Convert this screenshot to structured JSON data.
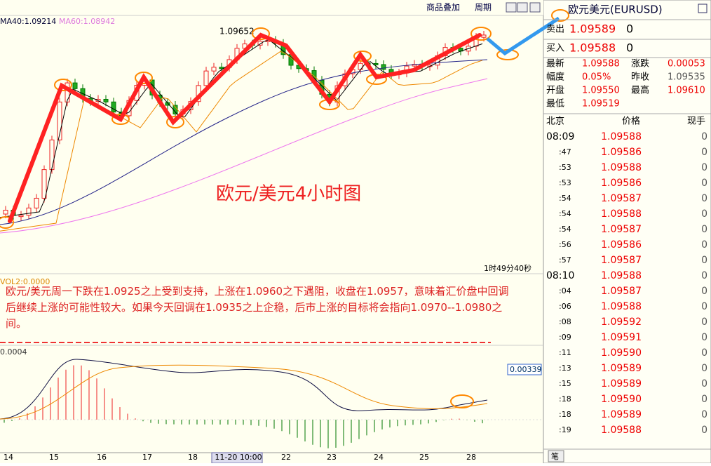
{
  "toolbar": {
    "buttons": [
      "商品叠加",
      "周期"
    ]
  },
  "chart": {
    "ma_labels": [
      "MA40:1.09214",
      "MA60:1.08942"
    ],
    "high_label": "1.09652",
    "overlay_title": "欧元/美元4小时图",
    "countdown": "1时49分40秒",
    "vol_label": "VOL2:0.0000",
    "commentary": "欧元/美元周一下跌在1.0925之上受到支持，上涨在1.0960之下遇阻，收盘在1.0957，意味着汇价盘中回调后继续上涨的可能性较大。如果今天回调在1.0935之上企稳，后市上涨的目标将会指向1.0970--1.0980之间。",
    "macd_axis_label": "0.0004",
    "macd_value": "0.00339",
    "x_labels": [
      "14",
      "15",
      "16",
      "17",
      "18",
      "11-20 10:00",
      "22",
      "23",
      "24",
      "25",
      "28"
    ]
  },
  "panel": {
    "title": "欧元美元(EURUSD)",
    "sell": {
      "label": "卖出",
      "price": "1.09589",
      "qty": "0"
    },
    "buy": {
      "label": "买入",
      "price": "1.09588",
      "qty": "0"
    },
    "stats": [
      [
        "最新",
        "1.09588",
        "涨跌",
        "0.00053"
      ],
      [
        "幅度",
        "0.05%",
        "昨收",
        "1.09535"
      ],
      [
        "开盘",
        "1.09550",
        "最高",
        "1.09610"
      ],
      [
        "最低",
        "1.09519"
      ]
    ],
    "ticks_header": [
      "北京",
      "价格",
      "现手"
    ],
    "ticks": [
      [
        "08:09",
        "1.09588",
        "0"
      ],
      [
        ":47",
        "1.09586",
        "0"
      ],
      [
        ":53",
        "1.09588",
        "0"
      ],
      [
        ":53",
        "1.09586",
        "0"
      ],
      [
        ":54",
        "1.09587",
        "0"
      ],
      [
        ":54",
        "1.09588",
        "0"
      ],
      [
        ":54",
        "1.09587",
        "0"
      ],
      [
        ":56",
        "1.09586",
        "0"
      ],
      [
        ":57",
        "1.09587",
        "0"
      ],
      [
        "08:10",
        "1.09588",
        "0"
      ],
      [
        ":04",
        "1.09587",
        "0"
      ],
      [
        ":06",
        "1.09588",
        "0"
      ],
      [
        ":08",
        "1.09592",
        "0"
      ],
      [
        ":09",
        "1.09591",
        "0"
      ],
      [
        ":11",
        "1.09590",
        "0"
      ],
      [
        ":13",
        "1.09589",
        "0"
      ],
      [
        ":15",
        "1.09589",
        "0"
      ],
      [
        ":18",
        "1.09590",
        "0"
      ],
      [
        ":18",
        "1.09589",
        "0"
      ],
      [
        ":19",
        "1.09588",
        "0"
      ]
    ],
    "tab": "笔"
  }
}
